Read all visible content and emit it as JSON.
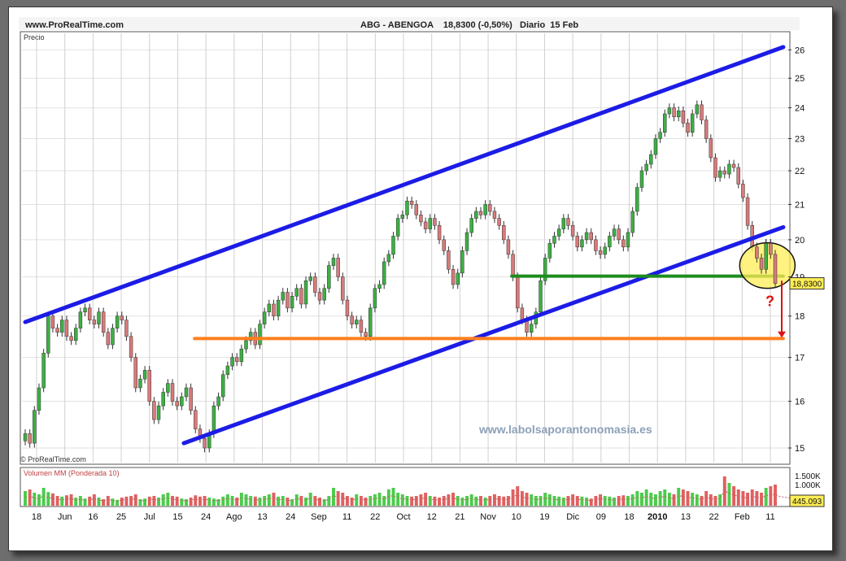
{
  "header": {
    "site": "www.ProRealTime.com",
    "title": "ABG - ABENGOA    18,8300 (-0,50%)   Diario  15 Feb"
  },
  "price_panel_label": "Precio",
  "watermark_bottom": "© ProRealTime.com",
  "watermark_site": "www.labolsaporantonomasia.es",
  "question_mark": "?",
  "colors": {
    "up": "#3cb043",
    "down": "#d97a7a",
    "channel": "#1c1ce6",
    "support_green": "#1e8c1e",
    "support_orange": "#ff7f1e",
    "arrow": "#e01010",
    "highlight": "#ffee55",
    "volume_up": "#4ccc4c",
    "volume_down": "#e06060"
  },
  "chart_data": [
    {
      "type": "candlestick",
      "title": "ABG - ABENGOA    18,8300 (-0,50%)   Diario  15 Feb",
      "ylabel": "Precio",
      "y_scale": "log",
      "ylim": [
        14.7,
        26.6
      ],
      "y_ticks": [
        "15",
        "16",
        "17",
        "18",
        "19",
        "20",
        "21",
        "22",
        "23",
        "24",
        "25",
        "26"
      ],
      "x_ticks": [
        "18",
        "Jun",
        "16",
        "25",
        "Jul",
        "15",
        "24",
        "Ago",
        "13",
        "24",
        "Sep",
        "11",
        "22",
        "Oct",
        "12",
        "21",
        "Nov",
        "10",
        "19",
        "Dic",
        "09",
        "18",
        "2010",
        "13",
        "22",
        "Feb",
        "11"
      ],
      "last_price_label": "18,8300",
      "channel_upper": {
        "from": [
          "2009-05-12",
          17.85
        ],
        "to": [
          "2010-02-18",
          26.1
        ]
      },
      "channel_lower": {
        "from": [
          "2009-07-10",
          15.1
        ],
        "to": [
          "2010-02-18",
          20.35
        ]
      },
      "support_green": {
        "from": [
          "2009-11-09",
          19.02
        ],
        "to": [
          "2010-02-18",
          19.02
        ]
      },
      "support_orange": {
        "from": [
          "2009-07-14",
          17.45
        ],
        "to": [
          "2010-02-18",
          17.45
        ]
      },
      "closes": [
        15.3,
        15.1,
        15.8,
        16.3,
        17.1,
        18.0,
        17.7,
        17.6,
        17.9,
        17.5,
        17.4,
        17.7,
        18.1,
        18.2,
        17.9,
        17.8,
        18.1,
        17.6,
        17.3,
        17.7,
        18.0,
        17.9,
        17.5,
        17.0,
        16.3,
        16.5,
        16.7,
        16.0,
        15.6,
        15.9,
        16.2,
        16.4,
        16.0,
        15.9,
        16.1,
        16.3,
        15.8,
        15.4,
        15.2,
        15.0,
        15.3,
        15.9,
        16.1,
        16.6,
        16.8,
        17.0,
        16.9,
        17.2,
        17.4,
        17.6,
        17.3,
        17.8,
        18.1,
        18.3,
        18.0,
        18.4,
        18.6,
        18.2,
        18.5,
        18.7,
        18.3,
        18.9,
        19.0,
        18.6,
        18.4,
        18.7,
        19.3,
        19.5,
        19.0,
        18.4,
        18.0,
        17.8,
        17.9,
        17.6,
        17.5,
        18.2,
        18.7,
        18.8,
        19.4,
        19.6,
        20.1,
        20.6,
        20.7,
        21.1,
        21.0,
        20.7,
        20.5,
        20.3,
        20.6,
        20.4,
        20.0,
        19.7,
        19.2,
        18.8,
        19.1,
        19.7,
        20.2,
        20.6,
        20.8,
        20.7,
        21.0,
        20.8,
        20.6,
        20.4,
        20.0,
        19.6,
        19.0,
        18.2,
        17.9,
        17.6,
        17.8,
        18.1,
        18.9,
        19.5,
        19.9,
        20.1,
        20.3,
        20.6,
        20.4,
        20.1,
        19.8,
        20.0,
        20.2,
        20.0,
        19.7,
        19.6,
        19.8,
        20.1,
        20.3,
        20.0,
        19.8,
        20.2,
        20.8,
        21.5,
        22.0,
        22.2,
        22.5,
        23.0,
        23.2,
        23.8,
        24.0,
        23.7,
        23.9,
        23.5,
        23.2,
        23.8,
        24.1,
        23.6,
        23.0,
        22.4,
        21.8,
        22.0,
        21.9,
        22.2,
        22.1,
        21.6,
        21.2,
        20.4,
        19.8,
        19.5,
        19.2,
        19.9,
        19.6,
        18.83
      ],
      "volume_ylim": [
        0,
        1500000
      ],
      "volume_ticks": [
        "1.500K",
        "1.000K"
      ],
      "volume_label": "Volumen MM (Ponderada 10)",
      "volume_last_label": "445.093",
      "volume_relative": [
        0.45,
        0.5,
        0.4,
        0.35,
        0.55,
        0.42,
        0.38,
        0.3,
        0.28,
        0.32,
        0.35,
        0.25,
        0.3,
        0.22,
        0.28,
        0.35,
        0.25,
        0.2,
        0.3,
        0.22,
        0.18,
        0.25,
        0.28,
        0.3,
        0.35,
        0.2,
        0.22,
        0.28,
        0.3,
        0.25,
        0.35,
        0.4,
        0.3,
        0.28,
        0.22,
        0.2,
        0.25,
        0.32,
        0.28,
        0.3,
        0.25,
        0.22,
        0.2,
        0.28,
        0.35,
        0.3,
        0.25,
        0.4,
        0.35,
        0.3,
        0.28,
        0.25,
        0.3,
        0.35,
        0.4,
        0.28,
        0.3,
        0.25,
        0.2,
        0.35,
        0.3,
        0.25,
        0.4,
        0.3,
        0.25,
        0.2,
        0.3,
        0.55,
        0.45,
        0.4,
        0.3,
        0.25,
        0.35,
        0.3,
        0.25,
        0.3,
        0.35,
        0.4,
        0.3,
        0.5,
        0.55,
        0.4,
        0.35,
        0.3,
        0.28,
        0.3,
        0.35,
        0.4,
        0.3,
        0.28,
        0.25,
        0.3,
        0.35,
        0.4,
        0.3,
        0.25,
        0.3,
        0.35,
        0.28,
        0.3,
        0.25,
        0.3,
        0.35,
        0.3,
        0.28,
        0.3,
        0.5,
        0.6,
        0.45,
        0.4,
        0.35,
        0.3,
        0.3,
        0.4,
        0.35,
        0.3,
        0.28,
        0.25,
        0.3,
        0.35,
        0.3,
        0.28,
        0.25,
        0.22,
        0.3,
        0.35,
        0.3,
        0.28,
        0.25,
        0.3,
        0.32,
        0.3,
        0.35,
        0.45,
        0.4,
        0.5,
        0.4,
        0.35,
        0.45,
        0.5,
        0.4,
        0.35,
        0.55,
        0.5,
        0.45,
        0.4,
        0.35,
        0.3,
        0.45,
        0.35,
        0.3,
        0.35,
        0.9,
        0.7,
        0.6,
        0.5,
        0.45,
        0.4,
        0.5,
        0.45,
        0.4,
        0.55,
        0.6,
        0.65,
        0.5,
        0.45,
        0.4,
        0.35,
        0.3
      ]
    }
  ]
}
